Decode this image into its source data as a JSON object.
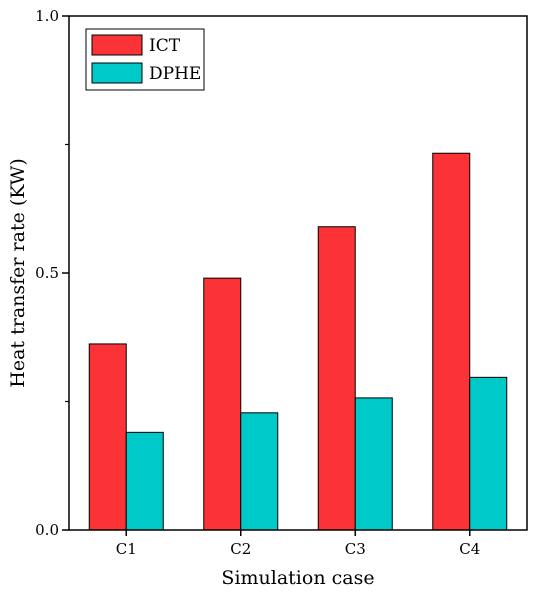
{
  "chart_data": {
    "type": "bar",
    "title": "",
    "xlabel": "Simulation case",
    "ylabel": "Heat transfer rate (KW)",
    "categories": [
      "C1",
      "C2",
      "C3",
      "C4"
    ],
    "series": [
      {
        "name": "ICT",
        "values": [
          0.362,
          0.49,
          0.59,
          0.733
        ],
        "color": "#fb3236"
      },
      {
        "name": "DPHE",
        "values": [
          0.19,
          0.228,
          0.257,
          0.297
        ],
        "color": "#00c9c9"
      }
    ],
    "ylim": [
      0.0,
      1.0
    ],
    "yticks": [
      "0.0",
      "0.5",
      "1.0"
    ],
    "yminor": [
      0.25,
      0.75
    ],
    "grid": false,
    "legend_position": "top-left"
  }
}
